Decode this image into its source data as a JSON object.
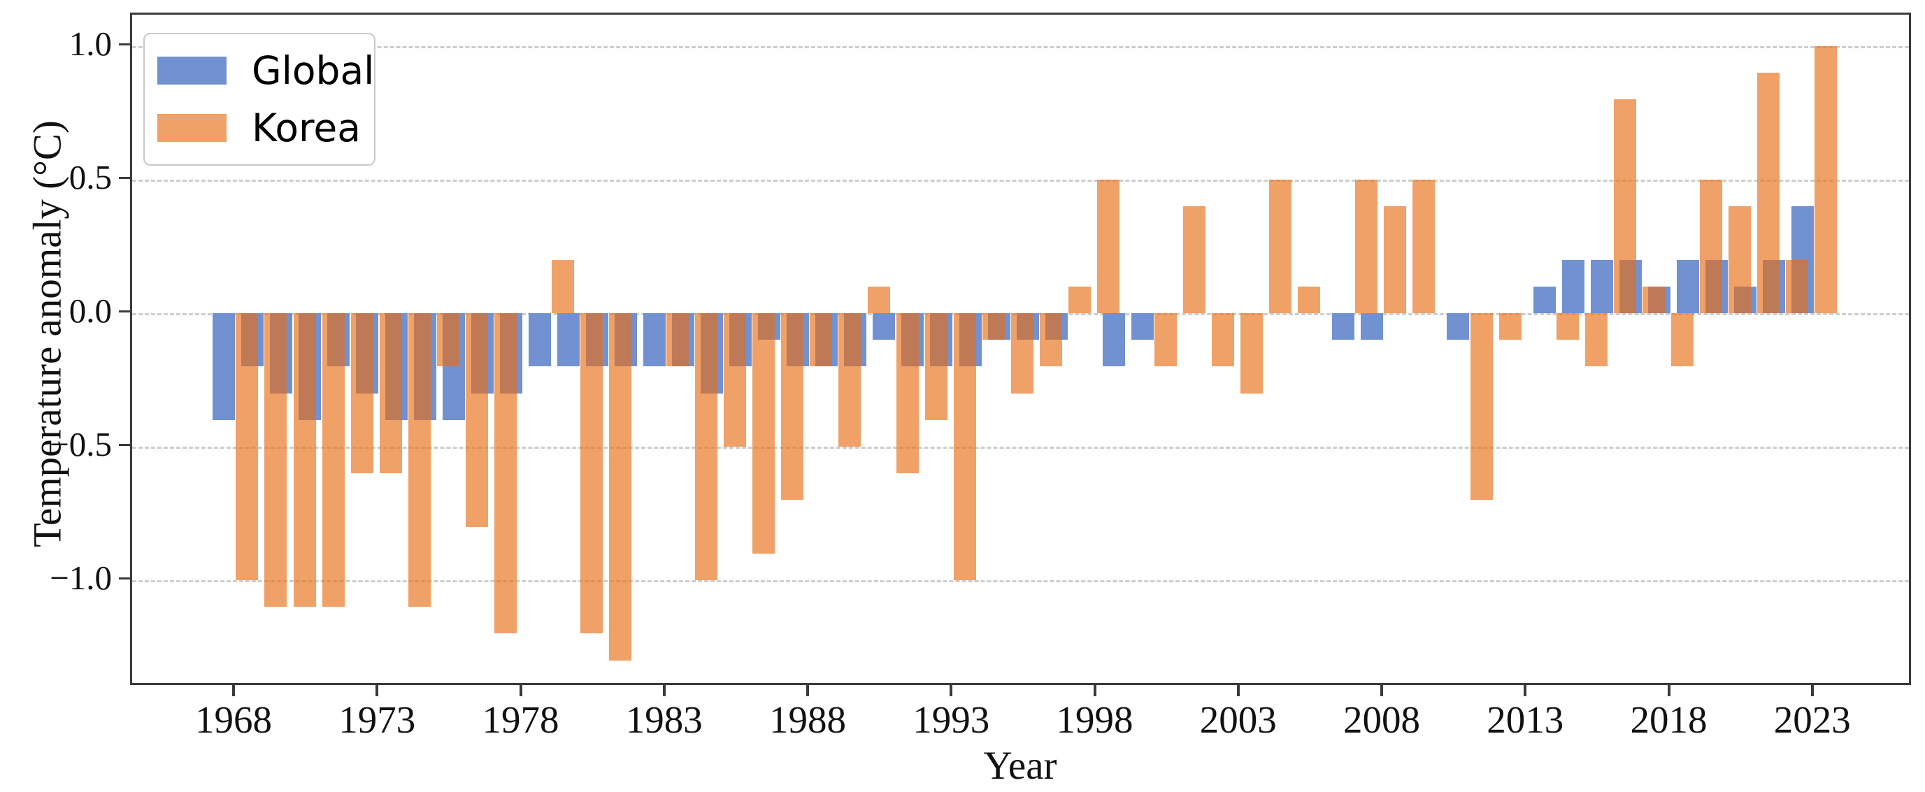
{
  "figure": {
    "background": "#ffffff",
    "spine_color": "#3a3a3a",
    "grid_color": "#cdcdcd",
    "global_color": "#7191d1",
    "korea_color": "#f0a167",
    "korea_fill_rgba": "rgba(232,110,21,0.65)",
    "overlap_color": "#be7a57"
  },
  "chart_data": {
    "type": "bar",
    "title": "",
    "xlabel": "Year",
    "ylabel": "Temperature anomaly (°C)",
    "grid": "horizontal dashed",
    "legend_position": "upper left",
    "xlim": [
      1964.4,
      2026.4
    ],
    "ylim": [
      -1.4,
      1.12
    ],
    "categories": [
      1968,
      1969,
      1970,
      1971,
      1972,
      1973,
      1974,
      1975,
      1976,
      1977,
      1978,
      1979,
      1980,
      1981,
      1982,
      1983,
      1984,
      1985,
      1986,
      1987,
      1988,
      1989,
      1990,
      1991,
      1992,
      1993,
      1994,
      1995,
      1996,
      1997,
      1998,
      1999,
      2000,
      2001,
      2002,
      2003,
      2004,
      2005,
      2006,
      2007,
      2008,
      2009,
      2010,
      2011,
      2012,
      2013,
      2014,
      2015,
      2016,
      2017,
      2018,
      2019,
      2020,
      2021,
      2022,
      2023
    ],
    "series": [
      {
        "name": "Global",
        "color": "#7191d1",
        "values": [
          -0.4,
          -0.2,
          -0.3,
          -0.4,
          -0.2,
          -0.3,
          -0.4,
          -0.4,
          -0.4,
          -0.3,
          -0.3,
          -0.2,
          -0.2,
          -0.2,
          -0.2,
          -0.2,
          -0.2,
          -0.3,
          -0.2,
          -0.1,
          -0.2,
          -0.2,
          -0.2,
          -0.1,
          -0.2,
          -0.2,
          -0.2,
          -0.1,
          -0.1,
          -0.1,
          0.0,
          -0.2,
          -0.1,
          0.0,
          0.0,
          0.0,
          0.0,
          0.0,
          0.0,
          -0.1,
          -0.1,
          0.0,
          0.0,
          -0.1,
          0.0,
          0.0,
          0.1,
          0.2,
          0.2,
          0.2,
          0.1,
          0.2,
          0.2,
          0.1,
          0.2,
          0.4
        ]
      },
      {
        "name": "Korea",
        "color": "#f0a167",
        "values": [
          -1.0,
          -1.1,
          -1.1,
          -1.1,
          -0.6,
          -0.6,
          -1.1,
          -0.2,
          -0.8,
          -1.2,
          0.0,
          0.2,
          -1.2,
          -1.3,
          0.0,
          -0.2,
          -1.0,
          -0.5,
          -0.9,
          -0.7,
          -0.2,
          -0.5,
          0.1,
          -0.6,
          -0.4,
          -1.0,
          -0.1,
          -0.3,
          -0.2,
          0.1,
          0.5,
          0.0,
          -0.2,
          0.4,
          -0.2,
          -0.3,
          0.5,
          0.1,
          0.0,
          0.5,
          0.4,
          0.5,
          0.0,
          -0.7,
          -0.1,
          0.0,
          -0.1,
          -0.2,
          0.8,
          0.1,
          -0.2,
          0.5,
          0.4,
          0.9,
          0.2,
          1.0
        ]
      }
    ],
    "yticks": [
      {
        "value": 1.0,
        "label": "1.0"
      },
      {
        "value": 0.5,
        "label": "0.5"
      },
      {
        "value": 0.0,
        "label": "0.0"
      },
      {
        "value": -0.5,
        "label": "−0.5"
      },
      {
        "value": -1.0,
        "label": "−1.0"
      }
    ],
    "xticks": [
      {
        "value": 1968,
        "label": "1968"
      },
      {
        "value": 1973,
        "label": "1973"
      },
      {
        "value": 1978,
        "label": "1978"
      },
      {
        "value": 1983,
        "label": "1983"
      },
      {
        "value": 1988,
        "label": "1988"
      },
      {
        "value": 1993,
        "label": "1993"
      },
      {
        "value": 1998,
        "label": "1998"
      },
      {
        "value": 2003,
        "label": "2003"
      },
      {
        "value": 2008,
        "label": "2008"
      },
      {
        "value": 2013,
        "label": "2013"
      },
      {
        "value": 2018,
        "label": "2018"
      },
      {
        "value": 2023,
        "label": "2023"
      }
    ]
  }
}
